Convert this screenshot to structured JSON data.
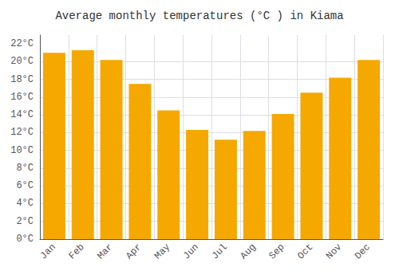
{
  "chart_data": {
    "type": "bar",
    "title": "Average monthly temperatures (°C ) in Kiama",
    "categories": [
      "Jan",
      "Feb",
      "Mar",
      "Apr",
      "May",
      "Jun",
      "Jul",
      "Aug",
      "Sep",
      "Oct",
      "Nov",
      "Dec"
    ],
    "values": [
      21,
      21.3,
      20.2,
      17.5,
      14.5,
      12.3,
      11.2,
      12.2,
      14.1,
      16.5,
      18.2,
      20.2
    ],
    "color": "#F5A800",
    "ylim": [
      0,
      23
    ],
    "yticks": [
      {
        "value": 0,
        "label": "0°C"
      },
      {
        "value": 2,
        "label": "2°C"
      },
      {
        "value": 4,
        "label": "4°C"
      },
      {
        "value": 6,
        "label": "6°C"
      },
      {
        "value": 8,
        "label": "8°C"
      },
      {
        "value": 10,
        "label": "10°C"
      },
      {
        "value": 12,
        "label": "12°C"
      },
      {
        "value": 14,
        "label": "14°C"
      },
      {
        "value": 16,
        "label": "16°C"
      },
      {
        "value": 18,
        "label": "18°C"
      },
      {
        "value": 20,
        "label": "20°C"
      },
      {
        "value": 22,
        "label": "22°C"
      }
    ],
    "grid": true
  }
}
